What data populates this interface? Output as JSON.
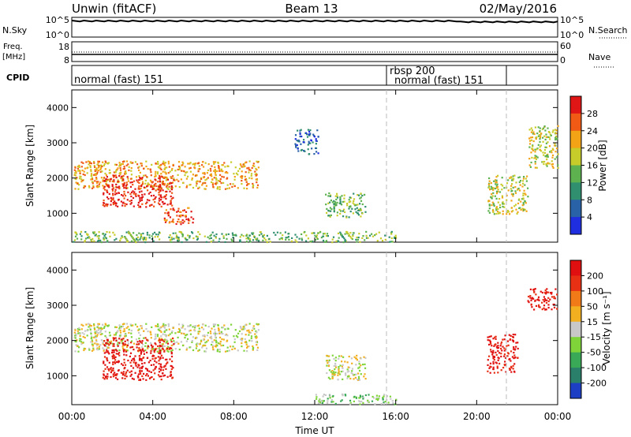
{
  "header": {
    "station": "Unwin (fitACF)",
    "beam": "Beam 13",
    "date": "02/May/2016"
  },
  "top_panels": {
    "nsky_label": "N.Sky",
    "nsky_ticks": [
      "10^5",
      "10^0"
    ],
    "nsearch_label": "N.Search",
    "nsearch_ticks": [
      "10^5",
      "10^0"
    ],
    "freq_label_1": "Freq.",
    "freq_label_2": "[MHz]",
    "freq_ticks": [
      "18",
      "8"
    ],
    "nave_label": "Nave",
    "nave_ticks": [
      "60",
      "0"
    ],
    "cpid_label": "CPID",
    "cpid_segments": [
      {
        "label": "normal (fast) 151",
        "start_hour": 0,
        "end_hour": 16
      },
      {
        "label": "rbsp 200",
        "start_hour": 16,
        "end_hour": 16.0
      },
      {
        "label": "normal (fast) 151",
        "start_hour": 16,
        "end_hour": 22
      }
    ]
  },
  "time_axis": {
    "ticks": [
      "00:00",
      "04:00",
      "08:00",
      "12:00",
      "16:00",
      "20:00",
      "00:00"
    ],
    "label": "Time UT"
  },
  "power_panel": {
    "ylabel": "Slant Range [km]",
    "yticks": [
      "1000",
      "2000",
      "3000",
      "4000"
    ],
    "colorbar_label": "Power [dB]",
    "colorbar_ticks": [
      "4",
      "8",
      "12",
      "16",
      "20",
      "24",
      "28"
    ],
    "colors": [
      "#1f2fe0",
      "#2a62a8",
      "#2f8f6f",
      "#5db24f",
      "#c8cc2a",
      "#f2a316",
      "#f05a14",
      "#e01616"
    ]
  },
  "velocity_panel": {
    "ylabel": "Slant Range [km]",
    "yticks": [
      "1000",
      "2000",
      "3000",
      "4000"
    ],
    "colorbar_label": "Velocity [m s⁻¹]",
    "colorbar_ticks": [
      "200",
      "100",
      "50",
      "15",
      "-15",
      "-50",
      "-100",
      "-200"
    ],
    "colors": [
      "#1d3fc4",
      "#2a7f6a",
      "#39a857",
      "#7fd43a",
      "#c8c8c8",
      "#f2b020",
      "#f07a18",
      "#e83014",
      "#e01010"
    ]
  },
  "chart_data": {
    "type": "heatmap",
    "x_range_hours": [
      0,
      24
    ],
    "y_range_km": [
      180,
      4500
    ],
    "dashed_marker_hours": [
      16,
      22
    ],
    "power_regions": [
      {
        "t0": 0.1,
        "t1": 9.2,
        "r0": 1700,
        "r1": 2500,
        "level": 5
      },
      {
        "t0": 1.5,
        "t1": 5.0,
        "r0": 1200,
        "r1": 2100,
        "level": 7
      },
      {
        "t0": 4.5,
        "t1": 6.0,
        "r0": 700,
        "r1": 1200,
        "level": 6
      },
      {
        "t0": 0.0,
        "t1": 16.0,
        "r0": 200,
        "r1": 500,
        "level": 3
      },
      {
        "t0": 11.0,
        "t1": 12.2,
        "r0": 2700,
        "r1": 3400,
        "level": 1
      },
      {
        "t0": 12.5,
        "t1": 14.5,
        "r0": 900,
        "r1": 1600,
        "level": 3
      },
      {
        "t0": 20.5,
        "t1": 22.5,
        "r0": 1000,
        "r1": 2100,
        "level": 4
      },
      {
        "t0": 22.5,
        "t1": 24.0,
        "r0": 2300,
        "r1": 3500,
        "level": 4
      }
    ],
    "velocity_regions": [
      {
        "t0": 0.1,
        "t1": 9.2,
        "r0": 1700,
        "r1": 2500,
        "level": 4
      },
      {
        "t0": 1.5,
        "t1": 5.0,
        "r0": 900,
        "r1": 2100,
        "level": 8
      },
      {
        "t0": 12.5,
        "t1": 14.5,
        "r0": 900,
        "r1": 1600,
        "level": 4
      },
      {
        "t0": 12.0,
        "t1": 16.0,
        "r0": 200,
        "r1": 500,
        "level": 3
      },
      {
        "t0": 20.5,
        "t1": 22.0,
        "r0": 1100,
        "r1": 2200,
        "level": 8
      },
      {
        "t0": 22.5,
        "t1": 24.0,
        "r0": 2900,
        "r1": 3500,
        "level": 8
      }
    ]
  }
}
